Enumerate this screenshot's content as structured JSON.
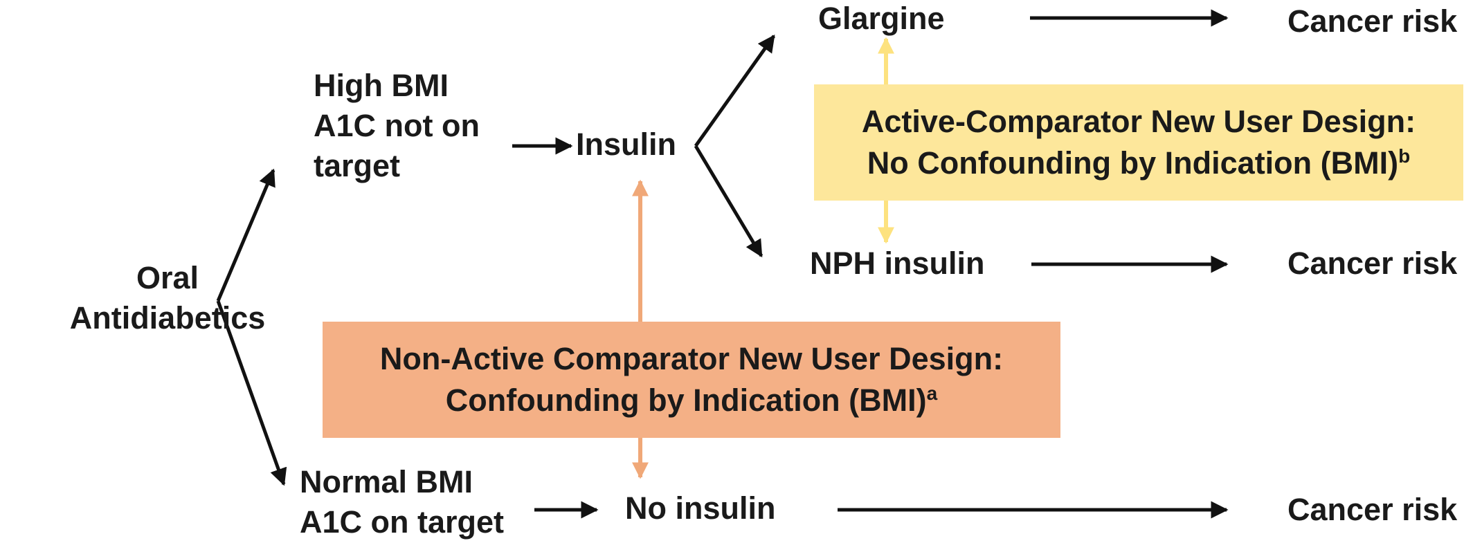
{
  "nodes": {
    "oral": [
      "Oral",
      "Antidiabetics"
    ],
    "high_bmi": [
      "High BMI",
      "A1C not on",
      "target"
    ],
    "normal_bmi": [
      "Normal BMI",
      "A1C on target"
    ],
    "insulin": "Insulin",
    "no_insulin": "No insulin",
    "glargine": "Glargine",
    "nph": "NPH insulin",
    "cancer_risk": "Cancer risk"
  },
  "boxes": {
    "active": {
      "line1": "Active-Comparator New User Design:",
      "line2": "No Confounding by Indication (BMI)",
      "sup": "b",
      "color": "#fde79b"
    },
    "nonactive": {
      "line1": "Non-Active Comparator New User Design:",
      "line2": "Confounding by Indication (BMI)",
      "sup": "a",
      "color": "#f4b086"
    }
  },
  "colors": {
    "arrow": "#111111",
    "active_arrow": "#fde27f",
    "nonactive_arrow": "#f0a878"
  }
}
